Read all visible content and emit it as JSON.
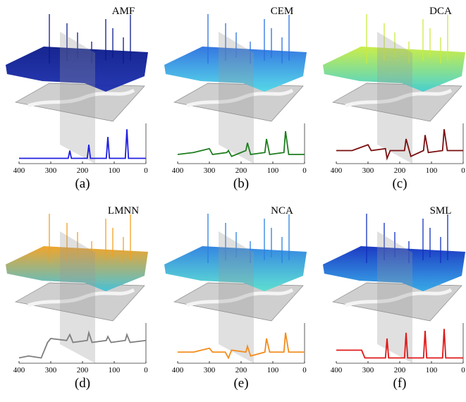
{
  "figure": {
    "xlim": [
      400,
      0
    ],
    "ylim": [
      0,
      1
    ],
    "xticks": [
      400,
      300,
      200,
      100,
      0
    ],
    "panels": [
      {
        "method": "AMF",
        "caption": "(a)",
        "color": "#1f1fe0",
        "surface_colors": [
          "#0a1a8a",
          "#1c2fb0"
        ],
        "x": [
          400,
          300,
          245,
          240,
          235,
          185,
          180,
          175,
          125,
          120,
          115,
          65,
          60,
          55,
          0
        ],
        "values": [
          0.1,
          0.1,
          0.1,
          0.3,
          0.1,
          0.1,
          0.45,
          0.1,
          0.1,
          0.65,
          0.1,
          0.1,
          0.85,
          0.1,
          0.1
        ]
      },
      {
        "method": "CEM",
        "caption": "(b)",
        "color": "#1e7d1e",
        "surface_colors": [
          "#2a70e0",
          "#4fd8e8"
        ],
        "x": [
          400,
          350,
          300,
          290,
          245,
          240,
          230,
          185,
          180,
          170,
          125,
          120,
          110,
          65,
          60,
          50,
          0
        ],
        "values": [
          0.2,
          0.25,
          0.35,
          0.2,
          0.25,
          0.3,
          0.15,
          0.3,
          0.5,
          0.2,
          0.25,
          0.6,
          0.2,
          0.25,
          0.8,
          0.2,
          0.2
        ]
      },
      {
        "method": "DCA",
        "caption": "(c)",
        "color": "#7a0f0f",
        "surface_colors": [
          "#c8ec40",
          "#40d0d0"
        ],
        "x": [
          400,
          350,
          300,
          290,
          245,
          240,
          230,
          185,
          180,
          165,
          125,
          120,
          110,
          65,
          60,
          50,
          0
        ],
        "values": [
          0.3,
          0.3,
          0.45,
          0.3,
          0.35,
          0.1,
          0.3,
          0.3,
          0.6,
          0.15,
          0.3,
          0.7,
          0.25,
          0.3,
          0.85,
          0.3,
          0.3
        ]
      },
      {
        "method": "LMNN",
        "caption": "(d)",
        "color": "#7f7f7f",
        "surface_colors": [
          "#f0a020",
          "#40c0d8"
        ],
        "x": [
          400,
          370,
          330,
          310,
          300,
          250,
          240,
          230,
          185,
          180,
          170,
          125,
          120,
          110,
          65,
          60,
          50,
          0
        ],
        "values": [
          0.1,
          0.15,
          0.1,
          0.5,
          0.6,
          0.55,
          0.7,
          0.5,
          0.55,
          0.75,
          0.5,
          0.55,
          0.65,
          0.5,
          0.55,
          0.7,
          0.5,
          0.55
        ]
      },
      {
        "method": "NCA",
        "caption": "(e)",
        "color": "#f28c1c",
        "surface_colors": [
          "#2a80e0",
          "#58e0d0"
        ],
        "x": [
          400,
          350,
          300,
          290,
          250,
          240,
          230,
          185,
          180,
          170,
          125,
          120,
          110,
          65,
          60,
          50,
          0
        ],
        "values": [
          0.25,
          0.25,
          0.35,
          0.25,
          0.25,
          0.1,
          0.3,
          0.25,
          0.4,
          0.15,
          0.25,
          0.6,
          0.25,
          0.25,
          0.75,
          0.25,
          0.25
        ]
      },
      {
        "method": "SML",
        "caption": "(f)",
        "color": "#e01818",
        "surface_colors": [
          "#1030c0",
          "#30a8e8"
        ],
        "x": [
          400,
          320,
          310,
          300,
          245,
          240,
          235,
          185,
          180,
          175,
          125,
          120,
          115,
          65,
          60,
          55,
          0
        ],
        "values": [
          0.3,
          0.3,
          0.1,
          0.1,
          0.1,
          0.6,
          0.1,
          0.1,
          0.75,
          0.1,
          0.1,
          0.8,
          0.1,
          0.1,
          0.85,
          0.1,
          0.1
        ]
      }
    ]
  }
}
